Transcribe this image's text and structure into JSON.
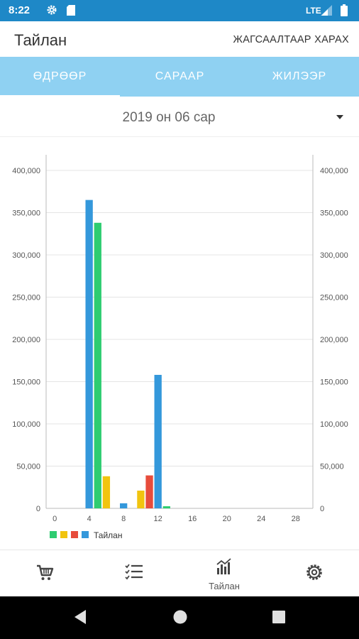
{
  "status_bar": {
    "time": "8:22",
    "network": "LTE"
  },
  "app_bar": {
    "title": "Тайлан",
    "action": "ЖАГСААЛТААР ХАРАХ"
  },
  "tabs": [
    {
      "label": "ӨДРӨӨР"
    },
    {
      "label": "САРААР"
    },
    {
      "label": "ЖИЛЭЭР"
    }
  ],
  "selected_tab": 0,
  "month_selector": {
    "value": "2019 он 06 сар"
  },
  "chart_data": {
    "type": "bar",
    "x_ticks": [
      0,
      4,
      8,
      12,
      16,
      20,
      24,
      28
    ],
    "y_ticks_labels": [
      "0",
      "50,000",
      "100,000",
      "150,000",
      "200,000",
      "250,000",
      "300,000",
      "350,000",
      "400,000"
    ],
    "xlim": [
      -1,
      30
    ],
    "ylim": [
      0,
      400000
    ],
    "dual_y_axis": true,
    "grid": "horizontal",
    "legend": {
      "position": "bottom-left",
      "label": "Тайлан",
      "colors": [
        "#2ecc71",
        "#f1c40f",
        "#e74c3c",
        "#3498db"
      ]
    },
    "bars": [
      {
        "x": 4,
        "value": 365000,
        "color": "#3498db"
      },
      {
        "x": 5,
        "value": 338000,
        "color": "#2ecc71"
      },
      {
        "x": 6,
        "value": 38000,
        "color": "#f1c40f"
      },
      {
        "x": 8,
        "value": 6000,
        "color": "#3498db"
      },
      {
        "x": 10,
        "value": 21000,
        "color": "#f1c40f"
      },
      {
        "x": 11,
        "value": 39000,
        "color": "#e74c3c"
      },
      {
        "x": 12,
        "value": 158000,
        "color": "#3498db"
      },
      {
        "x": 13,
        "value": 2500,
        "color": "#2ecc71"
      }
    ]
  },
  "bottom_nav": [
    {
      "name": "cart",
      "label": ""
    },
    {
      "name": "checklist",
      "label": ""
    },
    {
      "name": "report",
      "label": "Тайлан"
    },
    {
      "name": "settings",
      "label": ""
    }
  ],
  "active_nav": 2
}
